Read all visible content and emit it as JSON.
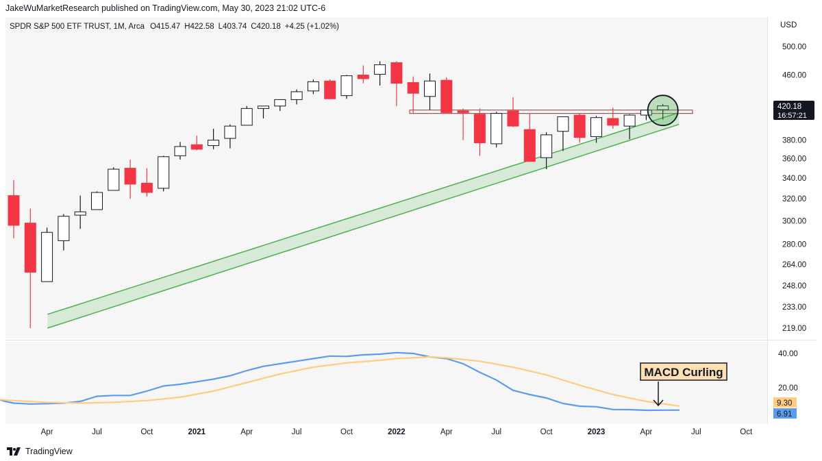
{
  "header": {
    "publisher": "JakeWuMarketResearch published on TradingView.com, May 30, 2023 21:02 UTC-6"
  },
  "footer": {
    "brand": "TradingView"
  },
  "chart_data": [
    {
      "type": "candlestick",
      "legend": {
        "symbol": "SPDR S&P 500 ETF TRUST, 1M, Arca",
        "open": "O415.47",
        "high": "H422.58",
        "low": "L403.74",
        "close": "C420.18",
        "change": "+4.25 (+1.02%)"
      },
      "currency": "USD",
      "y_scale": "log",
      "y_ticks": [
        219,
        233,
        248,
        264,
        280,
        300,
        320,
        340,
        360,
        380,
        420,
        460,
        500
      ],
      "y_tick_labels": [
        "219.00",
        "233.00",
        "248.00",
        "264.00",
        "280.00",
        "300.00",
        "320.00",
        "340.00",
        "360.00",
        "380.00",
        "420.00",
        "460.00",
        "500.00"
      ],
      "ylim": [
        214,
        520
      ],
      "last_price_label": "420.18",
      "countdown_label": "16:57:21",
      "candles": [
        [
          "2020-02",
          323,
          338,
          285,
          296
        ],
        [
          "2020-03",
          298,
          311,
          219,
          258
        ],
        [
          "2020-04",
          251,
          294,
          253,
          290
        ],
        [
          "2020-05",
          283,
          306,
          275,
          304
        ],
        [
          "2020-06",
          305,
          323,
          293,
          308
        ],
        [
          "2020-07",
          310,
          327,
          310,
          326
        ],
        [
          "2020-08",
          328,
          351,
          328,
          349
        ],
        [
          "2020-09",
          350,
          359,
          320,
          334
        ],
        [
          "2020-10",
          335,
          350,
          322,
          326
        ],
        [
          "2020-11",
          330,
          363,
          327,
          362
        ],
        [
          "2020-12",
          363,
          378,
          359,
          373
        ],
        [
          "2021-01",
          375,
          385,
          369,
          370
        ],
        [
          "2021-02",
          374,
          393,
          370,
          380
        ],
        [
          "2021-03",
          382,
          398,
          371,
          396
        ],
        [
          "2021-04",
          397,
          420,
          397,
          417
        ],
        [
          "2021-05",
          417,
          420,
          405,
          420
        ],
        [
          "2021-06",
          420,
          428,
          414,
          428
        ],
        [
          "2021-07",
          428,
          441,
          422,
          438
        ],
        [
          "2021-08",
          439,
          454,
          435,
          451
        ],
        [
          "2021-09",
          452,
          454,
          429,
          429
        ],
        [
          "2021-10",
          433,
          460,
          429,
          459
        ],
        [
          "2021-11",
          460,
          473,
          449,
          455
        ],
        [
          "2021-12",
          461,
          479,
          446,
          474
        ],
        [
          "2022-01",
          477,
          479,
          420,
          449
        ],
        [
          "2022-02",
          450,
          458,
          411,
          436
        ],
        [
          "2022-03",
          432,
          462,
          415,
          452
        ],
        [
          "2022-04",
          453,
          457,
          412,
          412
        ],
        [
          "2022-05",
          414,
          417,
          380,
          412
        ],
        [
          "2022-06",
          410,
          417,
          363,
          377
        ],
        [
          "2022-07",
          376,
          413,
          372,
          411
        ],
        [
          "2022-08",
          414,
          431,
          395,
          396
        ],
        [
          "2022-09",
          392,
          411,
          357,
          357
        ],
        [
          "2022-10",
          361,
          389,
          349,
          386
        ],
        [
          "2022-11",
          390,
          407,
          368,
          407
        ],
        [
          "2022-12",
          409,
          411,
          377,
          383
        ],
        [
          "2023-01",
          384,
          408,
          377,
          406
        ],
        [
          "2023-02",
          405,
          418,
          393,
          397
        ],
        [
          "2023-03",
          396,
          410,
          381,
          409
        ],
        [
          "2023-04",
          409,
          415,
          403,
          415
        ],
        [
          "2023-05",
          415.47,
          422.58,
          403.74,
          420.18
        ]
      ],
      "resistance_level": 413,
      "support_channel": {
        "upper": [
          [
            "2020-03",
            228
          ],
          [
            "2023-07",
            412
          ]
        ],
        "lower": [
          [
            "2020-03",
            219
          ],
          [
            "2023-07",
            398
          ]
        ]
      },
      "highlight_circle_at": "2023-05",
      "colors": {
        "up_body": "#ffffff",
        "up_border": "#131722",
        "down": "#f23645",
        "channel": "#4caf50",
        "resistance": "#8b3a3a",
        "macd_line": "#5b9cf0",
        "signal_line": "#ffcc80"
      }
    },
    {
      "type": "line",
      "title": "MACD",
      "y_ticks": [
        20,
        40
      ],
      "y_tick_labels": [
        "20.00",
        "40.00"
      ],
      "ylim": [
        -2,
        46
      ],
      "macd_label": "6.91",
      "signal_label": "9.30",
      "annotation": "MACD Curling",
      "series": [
        {
          "values": [
            [
              -1.4,
              14.5
            ],
            [
              -0.5,
              12
            ],
            [
              0,
              11
            ],
            [
              1,
              10.5
            ],
            [
              2,
              10.7
            ],
            [
              3,
              11
            ],
            [
              4,
              12
            ],
            [
              5,
              15
            ],
            [
              6,
              15.5
            ],
            [
              7,
              15.5
            ],
            [
              8,
              18
            ],
            [
              9,
              21
            ],
            [
              10,
              22
            ],
            [
              11,
              23.5
            ],
            [
              12,
              25
            ],
            [
              13,
              27
            ],
            [
              14,
              30
            ],
            [
              15,
              32.5
            ],
            [
              16,
              34
            ],
            [
              17,
              35.5
            ],
            [
              18,
              37
            ],
            [
              19,
              38.5
            ],
            [
              20,
              38.3
            ],
            [
              21,
              39.2
            ],
            [
              22,
              39.6
            ],
            [
              23,
              40.5
            ],
            [
              24,
              40
            ],
            [
              25,
              38
            ],
            [
              26,
              37
            ],
            [
              27,
              34
            ],
            [
              28,
              29
            ],
            [
              29,
              24.5
            ],
            [
              30,
              18.5
            ],
            [
              31,
              16
            ],
            [
              32,
              14
            ],
            [
              33,
              10.8
            ],
            [
              34,
              9.2
            ],
            [
              35,
              8.9
            ],
            [
              36,
              7.3
            ],
            [
              37,
              7.2
            ],
            [
              38,
              6.8
            ],
            [
              39,
              6.9
            ],
            [
              40,
              6.91
            ]
          ]
        },
        {
          "values": [
            [
              -1.4,
              13.5
            ],
            [
              0,
              12.5
            ],
            [
              2,
              11.5
            ],
            [
              4,
              11
            ],
            [
              6,
              11.5
            ],
            [
              8,
              12.5
            ],
            [
              10,
              14.5
            ],
            [
              12,
              18
            ],
            [
              14,
              23
            ],
            [
              16,
              28
            ],
            [
              18,
              32
            ],
            [
              20,
              34.5
            ],
            [
              22,
              36
            ],
            [
              23,
              37
            ],
            [
              24,
              37.5
            ],
            [
              25,
              38
            ],
            [
              26,
              37.5
            ],
            [
              28,
              35.5
            ],
            [
              30,
              32
            ],
            [
              32,
              27.5
            ],
            [
              34,
              21.5
            ],
            [
              36,
              16
            ],
            [
              38,
              12
            ],
            [
              40,
              9.3
            ]
          ]
        }
      ]
    }
  ],
  "x_axis": {
    "ticks": [
      {
        "label": "Apr",
        "m": 2,
        "bold": false
      },
      {
        "label": "Jul",
        "m": 5,
        "bold": false
      },
      {
        "label": "Oct",
        "m": 8,
        "bold": false
      },
      {
        "label": "2021",
        "m": 11,
        "bold": true
      },
      {
        "label": "Apr",
        "m": 14,
        "bold": false
      },
      {
        "label": "Jul",
        "m": 17,
        "bold": false
      },
      {
        "label": "Oct",
        "m": 20,
        "bold": false
      },
      {
        "label": "2022",
        "m": 23,
        "bold": true
      },
      {
        "label": "Apr",
        "m": 26,
        "bold": false
      },
      {
        "label": "Jul",
        "m": 29,
        "bold": false
      },
      {
        "label": "Oct",
        "m": 32,
        "bold": false
      },
      {
        "label": "2023",
        "m": 35,
        "bold": true
      },
      {
        "label": "Apr",
        "m": 38,
        "bold": false
      },
      {
        "label": "Jul",
        "m": 41,
        "bold": false
      },
      {
        "label": "Oct",
        "m": 44,
        "bold": false
      }
    ]
  }
}
